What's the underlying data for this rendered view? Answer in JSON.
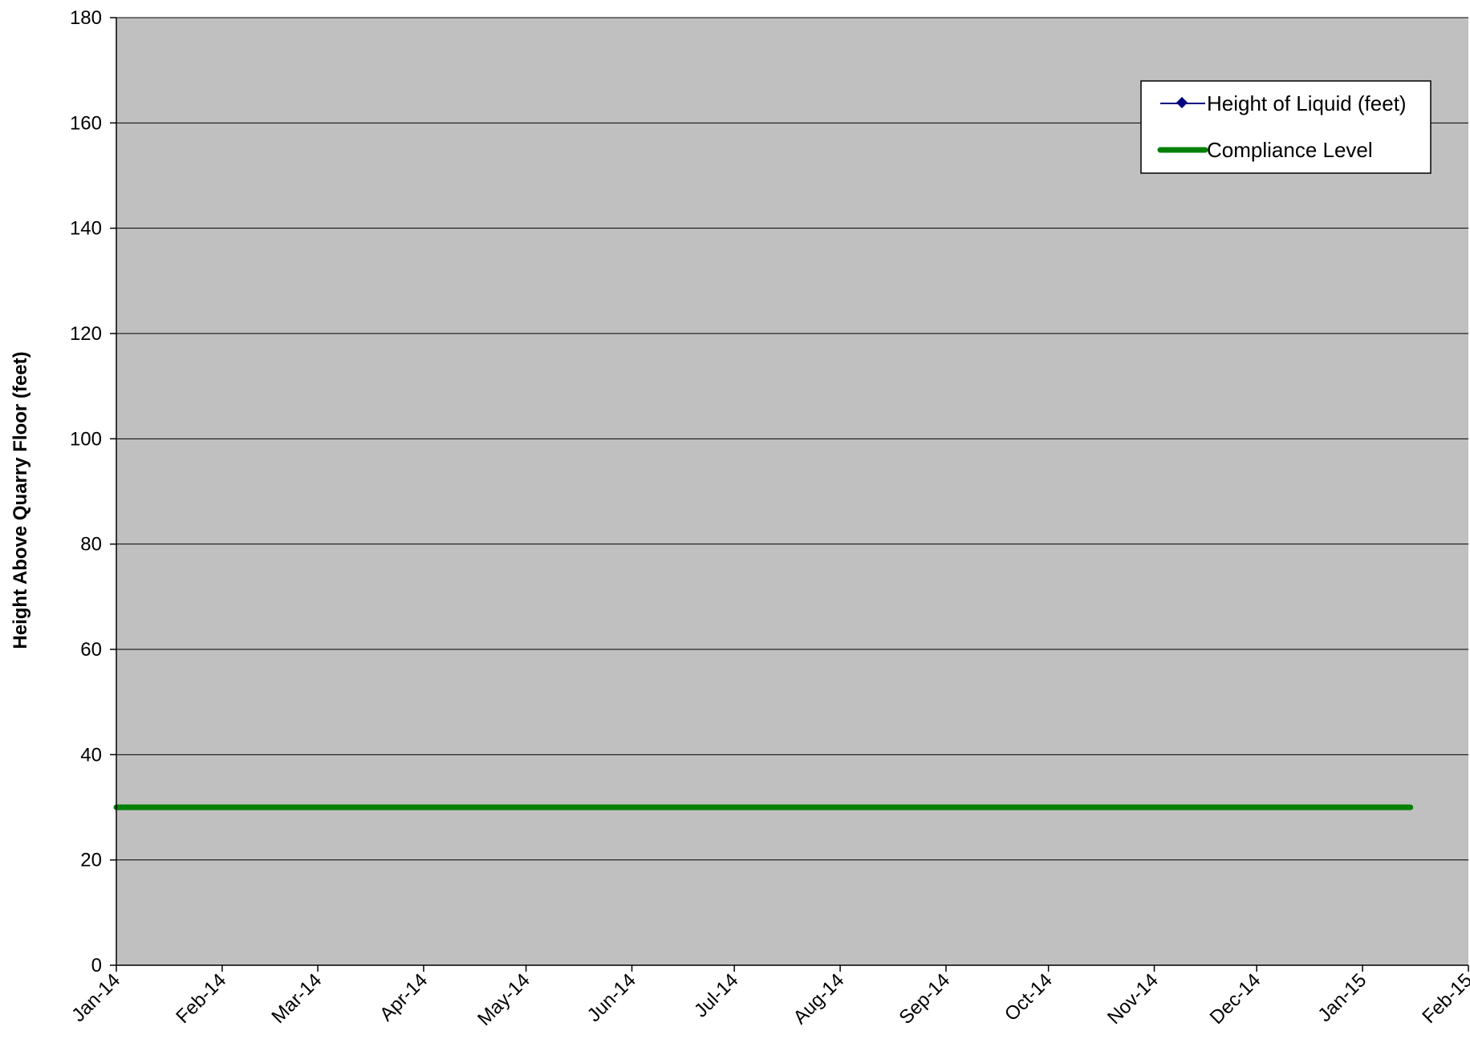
{
  "chart_data": {
    "type": "line",
    "title": "",
    "xlabel": "",
    "ylabel": "Height Above Quarry Floor (feet)",
    "ylim": [
      0,
      180
    ],
    "yticks": [
      0,
      20,
      40,
      60,
      80,
      100,
      120,
      140,
      160,
      180
    ],
    "xlim": [
      "2014-01-01",
      "2015-02-01"
    ],
    "x_tick_labels": [
      "Jan-14",
      "Feb-14",
      "Mar-14",
      "Apr-14",
      "May-14",
      "Jun-14",
      "Jul-14",
      "Aug-14",
      "Sep-14",
      "Oct-14",
      "Nov-14",
      "Dec-14",
      "Jan-15",
      "Feb-15"
    ],
    "x_tick_dates": [
      "2014-01-01",
      "2014-02-01",
      "2014-03-01",
      "2014-04-01",
      "2014-05-01",
      "2014-06-01",
      "2014-07-01",
      "2014-08-01",
      "2014-09-01",
      "2014-10-01",
      "2014-11-01",
      "2014-12-01",
      "2015-01-01",
      "2015-02-01"
    ],
    "grid": true,
    "plot_background": "#c0c0c0",
    "legend_position": "top-right",
    "series": [
      {
        "name": "Height of Liquid (feet)",
        "color": "#000080",
        "marker": "diamond",
        "points": []
      },
      {
        "name": "Compliance Level",
        "color": "#008000",
        "points": [
          {
            "x": "2014-01-01",
            "y": 30
          },
          {
            "x": "2015-01-15",
            "y": 30
          }
        ]
      }
    ]
  }
}
